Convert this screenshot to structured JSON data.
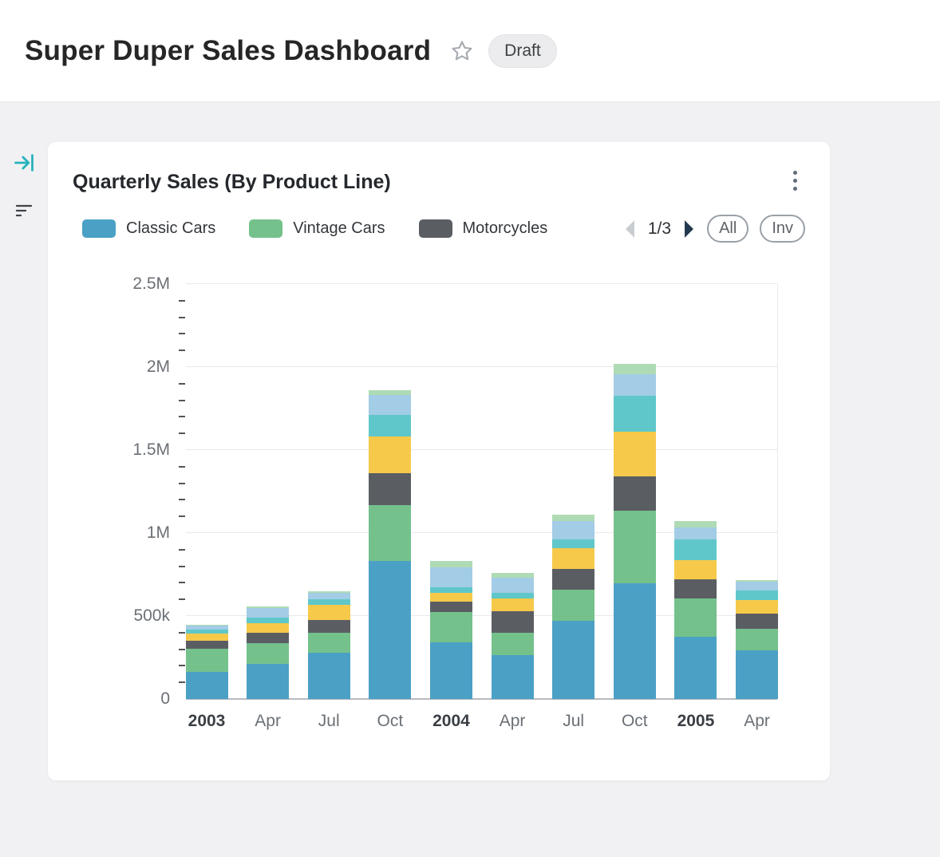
{
  "header": {
    "title": "Super Duper Sales Dashboard",
    "status_badge": "Draft"
  },
  "card": {
    "title": "Quarterly Sales (By Product Line)",
    "pagination_label": "1/3",
    "filter_all_label": "All",
    "filter_inv_label": "Inv"
  },
  "chart_data": {
    "type": "bar",
    "stacked": true,
    "title": "Quarterly Sales (By Product Line)",
    "unit": "USD, values in thousands",
    "ymax": 2500,
    "y_major_ticks": [
      {
        "value": 0,
        "label": "0"
      },
      {
        "value": 500,
        "label": "500k"
      },
      {
        "value": 1000,
        "label": "1M"
      },
      {
        "value": 1500,
        "label": "1.5M"
      },
      {
        "value": 2000,
        "label": "2M"
      },
      {
        "value": 2500,
        "label": "2.5M"
      }
    ],
    "y_minor_step": 100,
    "grid": true,
    "legend_position": "top",
    "categories": [
      {
        "label": "2003",
        "bold": true
      },
      {
        "label": "Apr",
        "bold": false
      },
      {
        "label": "Jul",
        "bold": false
      },
      {
        "label": "Oct",
        "bold": false
      },
      {
        "label": "2004",
        "bold": true
      },
      {
        "label": "Apr",
        "bold": false
      },
      {
        "label": "Jul",
        "bold": false
      },
      {
        "label": "Oct",
        "bold": false
      },
      {
        "label": "2005",
        "bold": true
      },
      {
        "label": "Apr",
        "bold": false
      }
    ],
    "series": [
      {
        "name": "Classic Cars",
        "color": "#4BA0C5",
        "in_legend": true,
        "values": [
          165,
          210,
          280,
          830,
          340,
          265,
          470,
          695,
          375,
          295
        ]
      },
      {
        "name": "Vintage Cars",
        "color": "#74C18C",
        "in_legend": true,
        "values": [
          140,
          125,
          120,
          340,
          185,
          135,
          190,
          440,
          230,
          130
        ]
      },
      {
        "name": "Motorcycles",
        "color": "#5A5E63",
        "in_legend": true,
        "values": [
          45,
          65,
          75,
          190,
          60,
          130,
          125,
          205,
          115,
          90
        ]
      },
      {
        "name": "unlabeled-yellow",
        "color": "#F6C94A",
        "in_legend": false,
        "values": [
          45,
          55,
          90,
          220,
          55,
          75,
          125,
          270,
          115,
          80
        ]
      },
      {
        "name": "unlabeled-teal",
        "color": "#5FC7C9",
        "in_legend": false,
        "values": [
          25,
          35,
          35,
          130,
          35,
          35,
          50,
          215,
          125,
          60
        ]
      },
      {
        "name": "unlabeled-light-blue",
        "color": "#A3CCE6",
        "in_legend": false,
        "values": [
          20,
          60,
          40,
          120,
          120,
          90,
          110,
          130,
          75,
          50
        ]
      },
      {
        "name": "unlabeled-light-green",
        "color": "#AFDBB4",
        "in_legend": false,
        "values": [
          5,
          10,
          10,
          30,
          35,
          30,
          40,
          65,
          35,
          10
        ]
      }
    ]
  }
}
